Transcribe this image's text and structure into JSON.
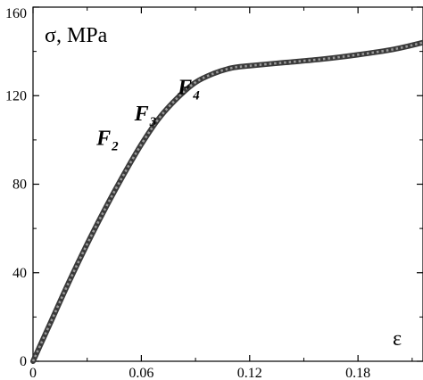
{
  "chart_data": {
    "type": "line",
    "title": "",
    "xlabel": "ε",
    "ylabel": "σ, MPa",
    "xlim": [
      0,
      0.216
    ],
    "ylim": [
      0,
      160
    ],
    "xticks": [
      0,
      0.06,
      0.12,
      0.18
    ],
    "xtick_labels": [
      "0",
      "0.06",
      "0.12",
      "0.18"
    ],
    "yticks": [
      0,
      40,
      80,
      120,
      160
    ],
    "ytick_labels": [
      "0",
      "40",
      "80",
      "120",
      "160"
    ],
    "grid": false,
    "legend": "none",
    "series": [
      {
        "style": "thick dark grey line with dotted overlay",
        "color": "#3a3a3a",
        "x": [
          0,
          0.005,
          0.01,
          0.02,
          0.03,
          0.04,
          0.05,
          0.06,
          0.07,
          0.08,
          0.09,
          0.1,
          0.11,
          0.12,
          0.14,
          0.16,
          0.18,
          0.2,
          0.216
        ],
        "y": [
          0,
          9,
          18,
          36,
          53,
          69,
          84,
          98,
          110,
          119,
          126,
          130,
          132.5,
          133.5,
          135,
          136.5,
          138.5,
          141,
          144
        ]
      }
    ],
    "annotations": [
      {
        "main": "F",
        "sub": "2",
        "x": 0.049,
        "y": 101
      },
      {
        "main": "F",
        "sub": "3",
        "x": 0.07,
        "y": 112
      },
      {
        "main": "F",
        "sub": "4",
        "x": 0.094,
        "y": 124
      }
    ]
  }
}
